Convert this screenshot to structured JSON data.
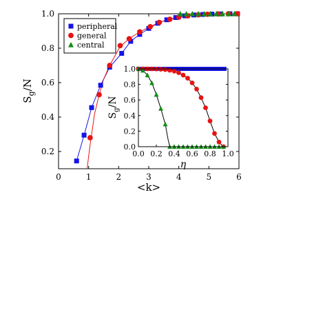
{
  "chart_data": [
    {
      "id": "main",
      "type": "line",
      "xlabel": "<k>",
      "ylabel_main": "S",
      "ylabel_sub": "g",
      "ylabel_tail": "/N",
      "xlim": [
        0,
        6
      ],
      "ylim": [
        0.1,
        1.0
      ],
      "xticks": [
        0,
        1,
        2,
        3,
        4,
        5,
        6
      ],
      "yticks": [
        0.2,
        0.4,
        0.6,
        0.8,
        1.0
      ],
      "ytick_labels": [
        "0.2",
        "0.4",
        "0.6",
        "0.8",
        "1.0"
      ],
      "legend_position": "top-left",
      "series": [
        {
          "name": "peripheral",
          "marker": "square",
          "color": "#1414e6",
          "x": [
            0.6,
            0.85,
            1.1,
            1.4,
            1.7,
            2.1,
            2.4,
            2.7,
            3.0,
            3.3,
            3.6,
            3.9,
            4.2,
            4.5,
            4.8,
            5.1,
            5.4,
            5.7,
            5.95
          ],
          "y": [
            0.145,
            0.295,
            0.455,
            0.585,
            0.69,
            0.77,
            0.84,
            0.88,
            0.915,
            0.945,
            0.965,
            0.978,
            0.988,
            0.993,
            0.996,
            0.998,
            0.999,
            1.0,
            1.0
          ],
          "curve_x": [
            0.6,
            0.85,
            1.1,
            1.4,
            1.7,
            2.1,
            2.4,
            2.7,
            3.0,
            3.3,
            3.6,
            3.9,
            4.2,
            4.5,
            4.8,
            5.1,
            5.4,
            5.7,
            6.0
          ],
          "curve_y": [
            0.145,
            0.295,
            0.455,
            0.585,
            0.69,
            0.77,
            0.84,
            0.88,
            0.915,
            0.945,
            0.965,
            0.978,
            0.988,
            0.993,
            0.996,
            0.998,
            0.999,
            1.0,
            1.0
          ]
        },
        {
          "name": "general",
          "marker": "circle",
          "color": "#e61414",
          "x": [
            1.05,
            1.35,
            1.7,
            2.05,
            2.35,
            2.7,
            3.05,
            3.35,
            3.7,
            4.0,
            4.3,
            4.65,
            4.95,
            5.3,
            5.65,
            5.95
          ],
          "y": [
            0.28,
            0.53,
            0.7,
            0.815,
            0.855,
            0.895,
            0.925,
            0.95,
            0.968,
            0.98,
            0.988,
            0.994,
            0.997,
            0.999,
            1.0,
            1.0
          ],
          "curve_x": [
            0.95,
            1.05,
            1.2,
            1.35,
            1.5,
            1.7,
            2.05,
            2.35,
            2.7,
            3.05,
            3.35,
            3.7,
            4.0,
            4.3,
            4.65,
            4.95,
            5.3,
            5.65,
            6.0
          ],
          "curve_y": [
            0.1,
            0.24,
            0.42,
            0.53,
            0.62,
            0.7,
            0.81,
            0.855,
            0.895,
            0.925,
            0.95,
            0.968,
            0.98,
            0.988,
            0.994,
            0.997,
            0.999,
            1.0,
            1.0
          ]
        },
        {
          "name": "central",
          "marker": "triangle",
          "color": "#148c14",
          "x": [
            4.05,
            4.25,
            4.45,
            4.65,
            4.85,
            5.05,
            5.25,
            5.45,
            5.65,
            5.85
          ],
          "y": [
            1.0,
            1.0,
            1.0,
            1.0,
            1.0,
            1.0,
            1.0,
            1.0,
            1.0,
            1.0
          ],
          "curve_x": [
            4.0,
            6.0
          ],
          "curve_y": [
            1.0,
            1.0
          ]
        }
      ]
    },
    {
      "id": "inset",
      "type": "line",
      "xlabel": "η",
      "ylabel_main": "S",
      "ylabel_sub": "g",
      "ylabel_tail": "/N",
      "xlim": [
        0.0,
        1.0
      ],
      "ylim": [
        0.0,
        1.0
      ],
      "xticks": [
        0.0,
        0.2,
        0.4,
        0.6,
        0.8,
        1.0
      ],
      "xtick_labels": [
        "0.0",
        "0.2",
        "0.4",
        "0.6",
        "0.8",
        "1.0"
      ],
      "yticks": [
        0.0,
        0.2,
        0.4,
        0.6,
        0.8,
        1.0
      ],
      "ytick_labels": [
        "0.0",
        "0.2",
        "0.4",
        "0.6",
        "0.8",
        "1.0"
      ],
      "series": [
        {
          "name": "peripheral",
          "marker": "square",
          "color": "#1414e6",
          "x": [
            0.0,
            0.04,
            0.08,
            0.12,
            0.16,
            0.2,
            0.24,
            0.28,
            0.32,
            0.36,
            0.4,
            0.44,
            0.48,
            0.52,
            0.56,
            0.6,
            0.64,
            0.68,
            0.72,
            0.76,
            0.8,
            0.84,
            0.88,
            0.92,
            0.96
          ],
          "y": [
            1,
            1,
            1,
            1,
            1,
            1,
            1,
            1,
            1,
            1,
            1,
            1,
            1,
            1,
            1,
            1,
            1,
            1,
            1,
            1,
            1,
            1,
            1,
            1,
            1
          ],
          "curve_x": [
            0.0,
            0.96
          ],
          "curve_y": [
            1.0,
            1.0
          ]
        },
        {
          "name": "general",
          "marker": "circle",
          "color": "#e61414",
          "x": [
            0.0,
            0.05,
            0.1,
            0.15,
            0.2,
            0.25,
            0.3,
            0.35,
            0.4,
            0.45,
            0.5,
            0.55,
            0.6,
            0.65,
            0.7,
            0.75,
            0.8,
            0.85,
            0.9,
            0.95
          ],
          "y": [
            1.0,
            1.0,
            1.0,
            1.0,
            0.998,
            0.995,
            0.99,
            0.982,
            0.97,
            0.95,
            0.92,
            0.88,
            0.82,
            0.74,
            0.63,
            0.5,
            0.33,
            0.17,
            0.06,
            0.0
          ],
          "curve_x": [
            0.0,
            0.2,
            0.35,
            0.45,
            0.55,
            0.6,
            0.65,
            0.7,
            0.75,
            0.8,
            0.85,
            0.9,
            0.93,
            0.95
          ],
          "curve_y": [
            1.0,
            0.998,
            0.982,
            0.95,
            0.88,
            0.82,
            0.74,
            0.63,
            0.5,
            0.33,
            0.17,
            0.06,
            0.02,
            0.0
          ]
        },
        {
          "name": "central",
          "marker": "triangle",
          "color": "#148c14",
          "x": [
            0.0,
            0.05,
            0.1,
            0.15,
            0.2,
            0.25,
            0.3,
            0.35,
            0.4,
            0.45,
            0.5,
            0.55,
            0.6,
            0.65,
            0.7,
            0.75,
            0.8,
            0.85,
            0.9,
            0.95
          ],
          "y": [
            1.0,
            0.98,
            0.92,
            0.82,
            0.67,
            0.49,
            0.29,
            0.0,
            0.0,
            0.0,
            0.0,
            0.0,
            0.0,
            0.0,
            0.0,
            0.0,
            0.0,
            0.0,
            0.0,
            0.0
          ],
          "curve_x": [
            0.0,
            0.05,
            0.1,
            0.15,
            0.2,
            0.25,
            0.3,
            0.33,
            0.35,
            0.95
          ],
          "curve_y": [
            1.0,
            0.98,
            0.92,
            0.82,
            0.67,
            0.49,
            0.29,
            0.1,
            0.0,
            0.0
          ]
        }
      ]
    }
  ]
}
